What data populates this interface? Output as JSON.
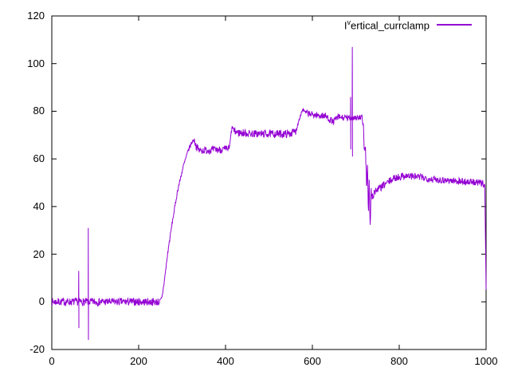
{
  "chart_data": {
    "type": "line",
    "title": "",
    "background": "#ffffff",
    "axis_color": "#000000",
    "grid": false,
    "legend_position": "top-right-inside",
    "legend": {
      "base": "I",
      "sup": "v",
      "rest": "ertical_currclamp"
    },
    "xlabel": "",
    "ylabel": "",
    "xlim": [
      0,
      1000
    ],
    "ylim": [
      -20,
      120
    ],
    "x_ticks": [
      0,
      200,
      400,
      600,
      800,
      1000
    ],
    "y_ticks": [
      -20,
      0,
      20,
      40,
      60,
      80,
      100,
      120
    ],
    "series": [
      {
        "name": "I^vertical_currclamp",
        "color": "#9400d3",
        "baseline": [
          [
            0,
            0
          ],
          [
            250,
            0
          ],
          [
            254,
            2
          ],
          [
            260,
            10
          ],
          [
            268,
            22
          ],
          [
            278,
            34
          ],
          [
            290,
            47
          ],
          [
            303,
            57
          ],
          [
            315,
            64
          ],
          [
            324,
            67.5
          ],
          [
            328,
            68
          ],
          [
            333,
            65
          ],
          [
            340,
            63.5
          ],
          [
            400,
            64
          ],
          [
            409,
            64.5
          ],
          [
            413,
            71
          ],
          [
            416,
            73.5
          ],
          [
            420,
            71.5
          ],
          [
            430,
            71
          ],
          [
            470,
            70.5
          ],
          [
            545,
            70.5
          ],
          [
            562,
            71.5
          ],
          [
            570,
            77
          ],
          [
            578,
            81
          ],
          [
            583,
            79.5
          ],
          [
            600,
            78.5
          ],
          [
            630,
            78
          ],
          [
            648,
            75.5
          ],
          [
            658,
            77.5
          ],
          [
            686,
            77
          ],
          [
            695,
            77.5
          ],
          [
            715,
            77
          ],
          [
            718,
            72
          ],
          [
            720,
            63
          ],
          [
            722,
            67
          ],
          [
            725,
            47
          ],
          [
            727,
            57
          ],
          [
            729,
            37
          ],
          [
            731,
            51
          ],
          [
            733,
            31
          ],
          [
            735,
            46
          ],
          [
            738,
            44
          ],
          [
            742,
            46
          ],
          [
            748,
            47
          ],
          [
            758,
            48
          ],
          [
            772,
            50
          ],
          [
            790,
            52
          ],
          [
            812,
            53
          ],
          [
            842,
            52.5
          ],
          [
            876,
            51.5
          ],
          [
            912,
            51
          ],
          [
            948,
            50.5
          ],
          [
            982,
            50
          ],
          [
            995,
            49.5
          ],
          [
            997,
            49
          ],
          [
            1000,
            5
          ]
        ],
        "noise_segments": [
          [
            0,
            252,
            1.6
          ],
          [
            252,
            330,
            0.9
          ],
          [
            330,
            408,
            1.6
          ],
          [
            408,
            419,
            0.9
          ],
          [
            419,
            563,
            1.6
          ],
          [
            563,
            585,
            0.8
          ],
          [
            585,
            716,
            1.4
          ],
          [
            716,
            745,
            2.4
          ],
          [
            745,
            995,
            1.5
          ],
          [
            995,
            1000,
            0.3
          ]
        ],
        "spikes": [
          [
            62,
            13,
            -11
          ],
          [
            84,
            31,
            -16
          ],
          [
            688,
            86,
            64
          ],
          [
            692,
            107,
            61
          ]
        ],
        "noise_seed": 7
      }
    ]
  }
}
